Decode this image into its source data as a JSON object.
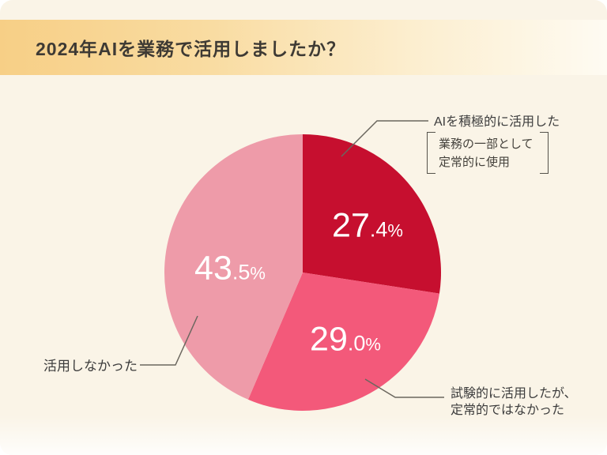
{
  "header": {
    "title": "2024年AIを業務で活用しましたか？"
  },
  "chart_data": {
    "type": "pie",
    "title": "2024年AIを業務で活用しましたか？",
    "start_angle_deg": 0,
    "direction": "clockwise",
    "legend_position": "callout-labels",
    "value_label_color": "#FFFFFF",
    "slices": [
      {
        "label": "AIを積極的に活用した",
        "note": "業務の一部として定常的に使用",
        "value": 27.4,
        "display": "27.4%",
        "color": "#C60F2F"
      },
      {
        "label": "試験的に活用したが、定常的ではなかった",
        "value": 29.0,
        "display": "29.0%",
        "color": "#F3597A"
      },
      {
        "label": "活用しなかった",
        "value": 43.5,
        "display": "43.5%",
        "color": "#EE9BA9"
      }
    ]
  },
  "annotations": {
    "label_active": "AIを積極的に活用した",
    "note_line1": "業務の一部として",
    "note_line2": "定常的に使用",
    "label_none": "活用しなかった",
    "label_trial_line1": "試験的に活用したが、",
    "label_trial_line2": "定常的ではなかった"
  }
}
